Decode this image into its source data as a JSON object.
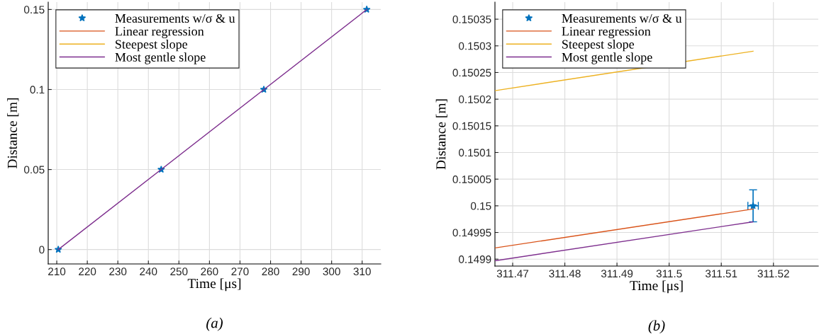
{
  "chart_data": [
    {
      "type": "line",
      "xlabel": "Time [μs]",
      "ylabel": "Distance [m]",
      "xlim": [
        207.2,
        316.1
      ],
      "ylim": [
        -0.009,
        0.1546
      ],
      "xticks": [
        210,
        220,
        230,
        240,
        250,
        260,
        270,
        280,
        290,
        300,
        310
      ],
      "yticks": [
        0,
        0.05,
        0.1,
        0.15
      ],
      "grid": true,
      "legend": "top left",
      "annotations": [
        "(a)"
      ],
      "series": [
        {
          "name": "Measurements w/σ & u",
          "type": "scatter",
          "marker": "star",
          "color": "#0072bd",
          "x": [
            210.5,
            244.2,
            277.8,
            311.5
          ],
          "values": [
            0,
            0.05,
            0.1,
            0.15
          ]
        },
        {
          "name": "Linear regression",
          "color": "#d95319"
        },
        {
          "name": "Steepest slope",
          "color": "#edb120"
        },
        {
          "name": "Most gentle slope",
          "color": "#7e2f8e",
          "x": [
            210.5,
            311.5
          ],
          "values": [
            0,
            0.15
          ]
        }
      ]
    },
    {
      "type": "line",
      "xlabel": "Time [μs]",
      "ylabel": "Distance [m]",
      "xlim": [
        311.4666,
        311.5286
      ],
      "ylim": [
        0.149887,
        0.150382
      ],
      "xticks": [
        311.47,
        311.48,
        311.49,
        {
          "value": 311.5,
          "label": "311.5"
        },
        311.51,
        311.52
      ],
      "yticks": [
        0.1499,
        0.14995,
        {
          "value": 0.15,
          "label": "0.15"
        },
        0.15005,
        0.1501,
        0.15015,
        0.1502,
        0.15025,
        0.1503,
        0.15035
      ],
      "grid": true,
      "legend": "top left",
      "annotations": [
        "(b)"
      ],
      "series": [
        {
          "name": "Measurements w/σ & u",
          "type": "scatter",
          "marker": "star",
          "color": "#0072bd",
          "x": [
            311.5161
          ],
          "values": [
            0.15
          ],
          "errors": [
            3e-05
          ],
          "xerrors": [
            0.001
          ]
        },
        {
          "name": "Linear regression",
          "color": "#d95319",
          "x": [
            311.4666,
            311.5161
          ],
          "values": [
            0.149921,
            0.149994
          ]
        },
        {
          "name": "Steepest slope",
          "color": "#edb120",
          "x": [
            311.4666,
            311.5161
          ],
          "values": [
            0.150216,
            0.15029
          ]
        },
        {
          "name": "Most gentle slope",
          "color": "#7e2f8e",
          "x": [
            311.4666,
            311.5161
          ],
          "values": [
            0.149897,
            0.14997
          ]
        }
      ]
    }
  ]
}
